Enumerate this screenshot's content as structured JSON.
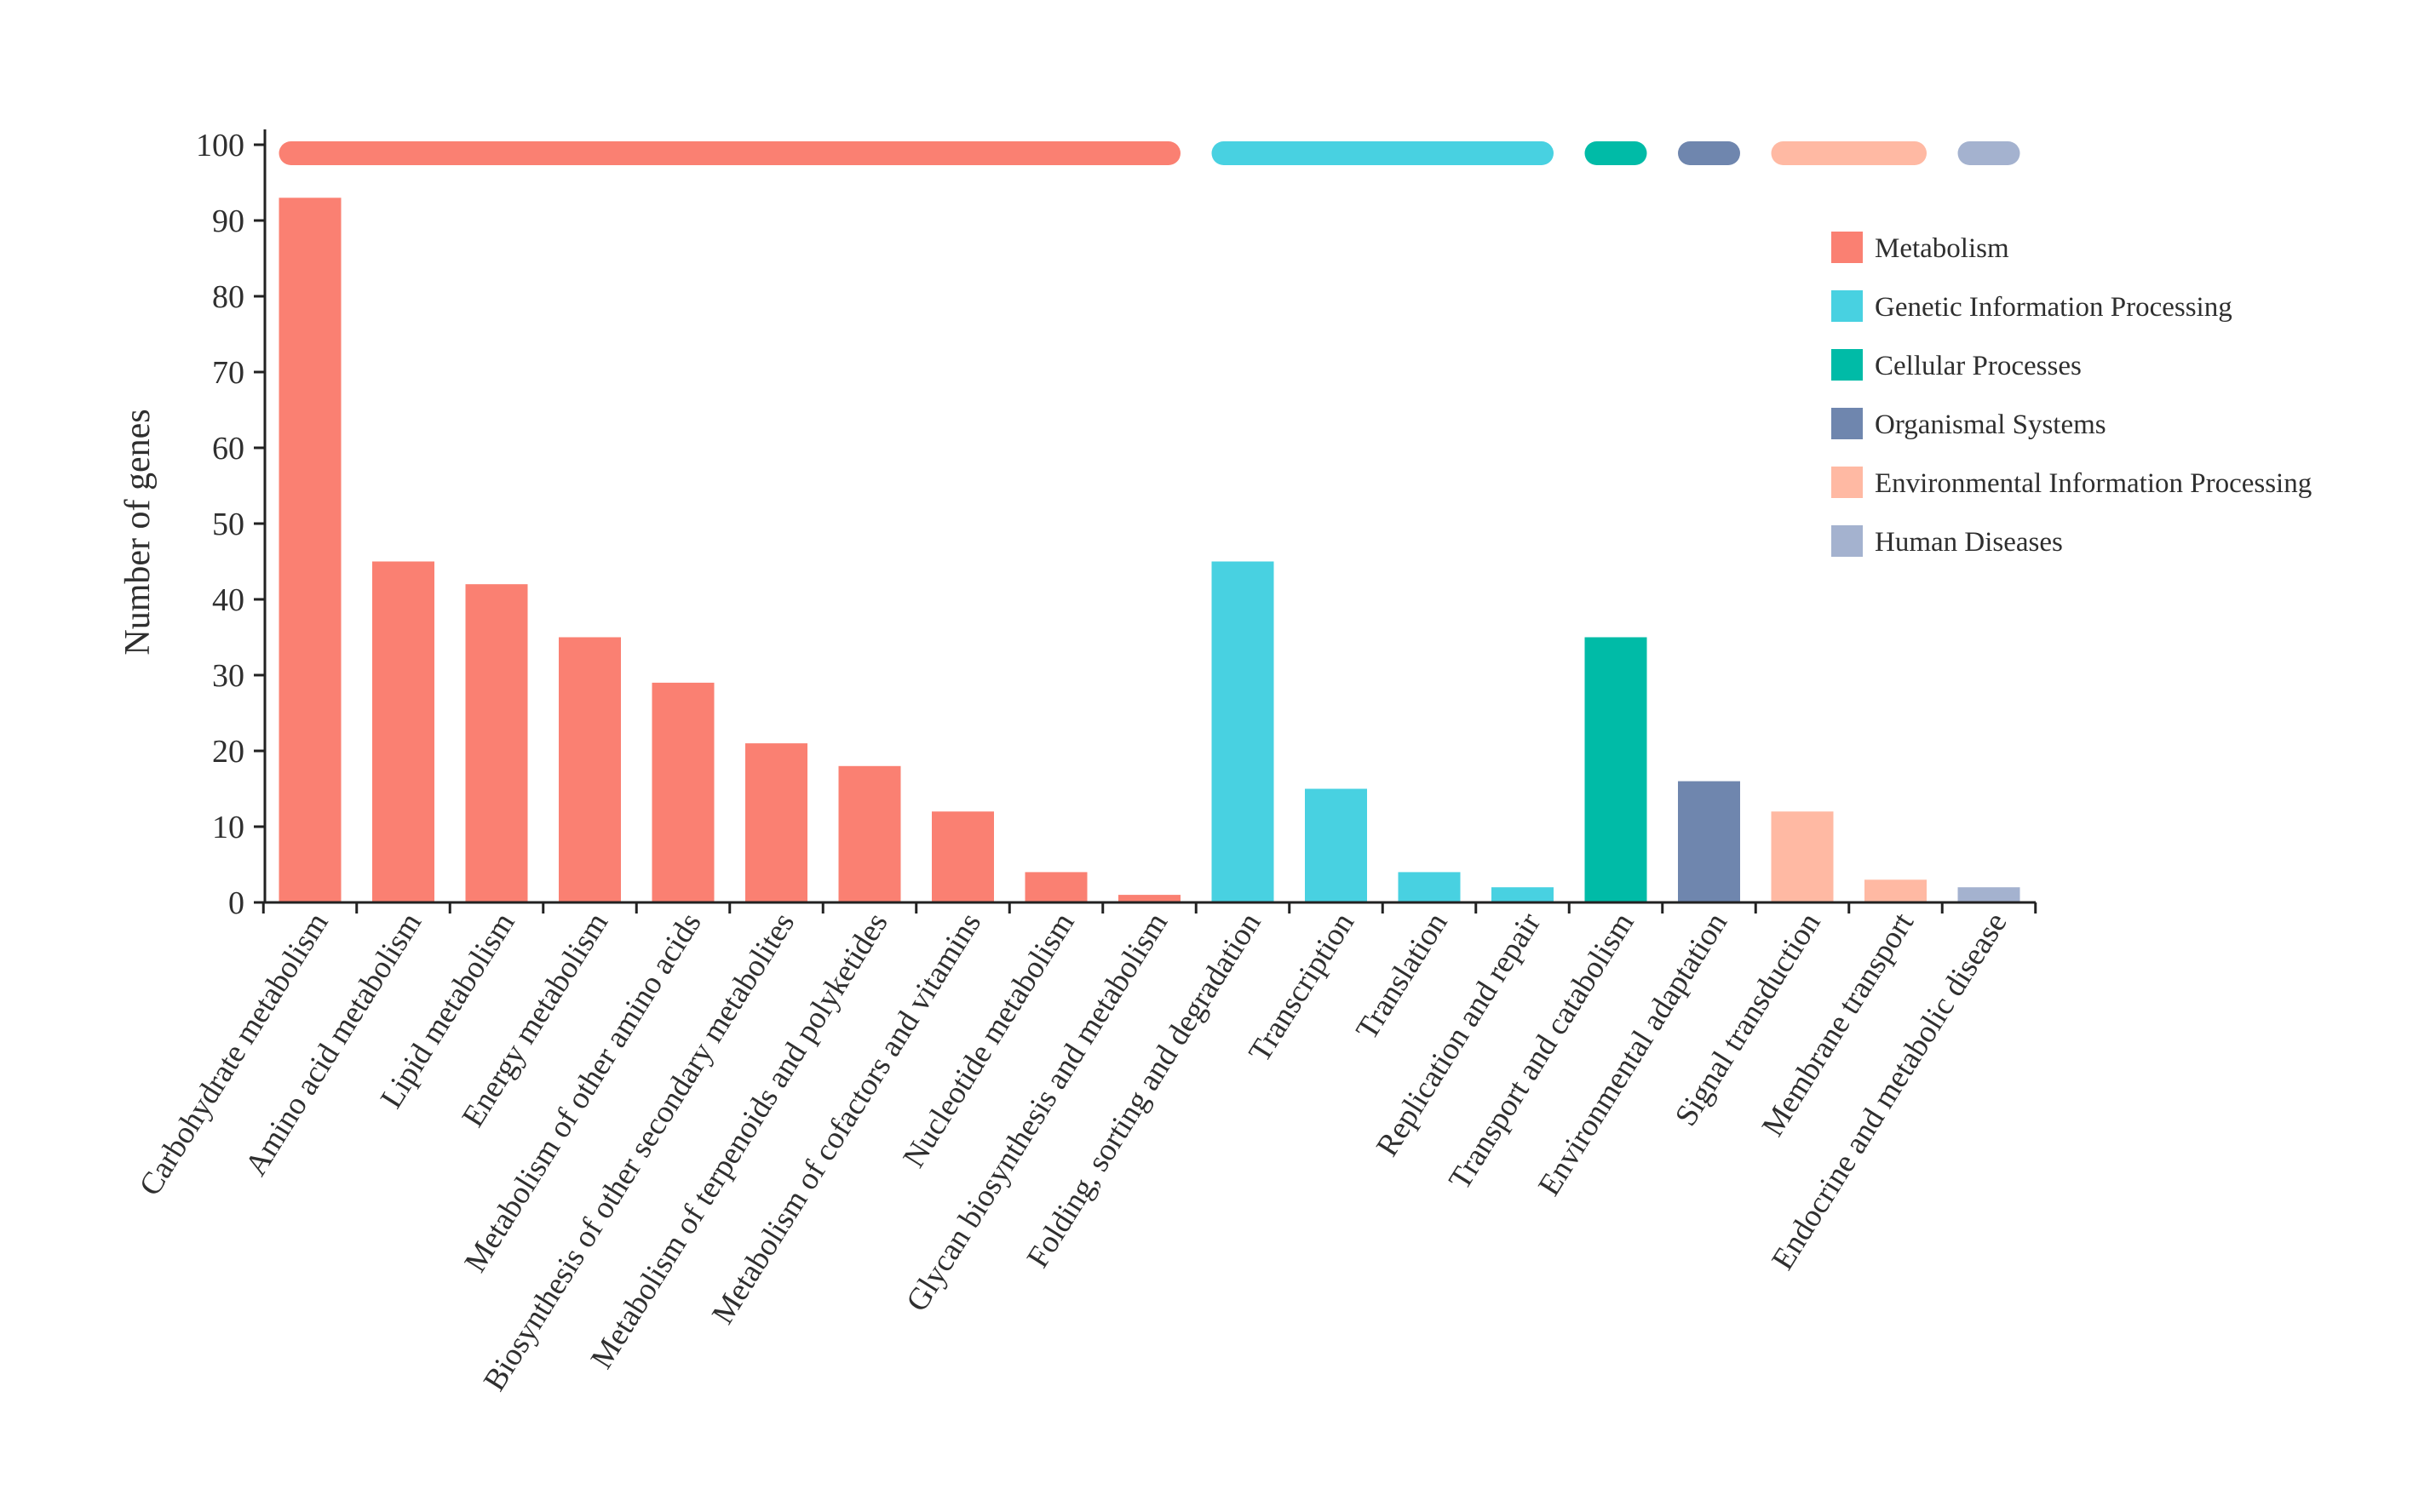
{
  "chart_data": {
    "type": "bar",
    "title": "",
    "xlabel": "",
    "ylabel": "Number of genes",
    "ylim": [
      0,
      100
    ],
    "yticks": [
      "0",
      "10",
      "20",
      "30",
      "40",
      "50",
      "60",
      "70",
      "80",
      "90",
      "100"
    ],
    "categories": [
      "Carbohydrate metabolism",
      "Amino acid metabolism",
      "Lipid metabolism",
      "Energy metabolism",
      "Metabolism of other amino acids",
      "Biosynthesis of other secondary metabolites",
      "Metabolism of terpenoids and polyketides",
      "Metabolism of cofactors and vitamins",
      "Nucleotide metabolism",
      "Glycan biosynthesis and metabolism",
      "Folding, sorting and degradation",
      "Transcription",
      "Translation",
      "Replication and repair",
      "Transport and catabolism",
      "Environmental adaptation",
      "Signal transduction",
      "Membrane transport",
      "Endocrine and metabolic disease"
    ],
    "values": [
      93,
      45,
      42,
      35,
      29,
      21,
      18,
      12,
      4,
      1,
      45,
      15,
      4,
      2,
      35,
      16,
      12,
      3,
      2
    ],
    "groups": [
      {
        "name": "Metabolism",
        "color": "#FA8072",
        "start": 0,
        "end": 9
      },
      {
        "name": "Genetic Information Processing",
        "color": "#48D1E1",
        "start": 10,
        "end": 13
      },
      {
        "name": "Cellular Processes",
        "color": "#00BBA7",
        "start": 14,
        "end": 14
      },
      {
        "name": "Organismal Systems",
        "color": "#6F86AE",
        "start": 15,
        "end": 15
      },
      {
        "name": "Environmental Information Processing",
        "color": "#FFB9A3",
        "start": 16,
        "end": 17
      },
      {
        "name": "Human Diseases",
        "color": "#A4B2CF",
        "start": 18,
        "end": 18
      }
    ],
    "legend": {
      "position": "top-right",
      "items": [
        {
          "label": "Metabolism",
          "color": "#FA8072"
        },
        {
          "label": "Genetic Information Processing",
          "color": "#48D1E1"
        },
        {
          "label": "Cellular Processes",
          "color": "#00BBA7"
        },
        {
          "label": "Organismal Systems",
          "color": "#6F86AE"
        },
        {
          "label": "Environmental Information Processing",
          "color": "#FFB9A3"
        },
        {
          "label": "Human Diseases",
          "color": "#A4B2CF"
        }
      ]
    },
    "grid": false
  }
}
